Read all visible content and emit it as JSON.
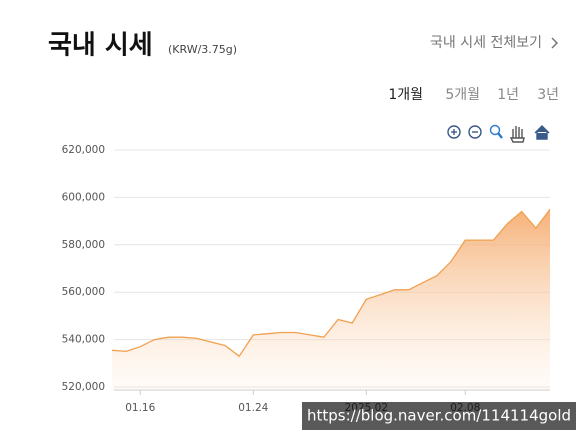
{
  "header": {
    "title": "국내 시세",
    "unit": "(KRW/3.75g)",
    "link": "국내 시세 전체보기"
  },
  "tabs": [
    "1개월",
    "5개월",
    "1년",
    "3년"
  ],
  "watermark": "https://blog.naver.com/114114gold",
  "chart_data": {
    "type": "area",
    "categories": [
      null,
      null,
      "01.16",
      null,
      null,
      null,
      null,
      null,
      null,
      null,
      "01.24",
      null,
      null,
      null,
      null,
      null,
      null,
      null,
      "2025.02",
      null,
      null,
      null,
      null,
      null,
      null,
      "02.08",
      null,
      null,
      null,
      null,
      null,
      null
    ],
    "values": [
      535500,
      535000,
      537000,
      540000,
      541000,
      541000,
      540500,
      539000,
      537500,
      533000,
      542000,
      542500,
      543000,
      543000,
      542000,
      541000,
      548500,
      547000,
      557000,
      559000,
      561000,
      561000,
      564000,
      567000,
      573000,
      582000,
      582000,
      582000,
      589000,
      594000,
      587000,
      595000
    ],
    "color": "#f0a050",
    "ylim": [
      520000,
      620000
    ],
    "yticks": [
      {
        "value": 520000,
        "label": "520,000"
      },
      {
        "value": 540000,
        "label": "540,000"
      },
      {
        "value": 560000,
        "label": "560,000"
      },
      {
        "value": 580000,
        "label": "580,000"
      },
      {
        "value": 600000,
        "label": "600,000"
      },
      {
        "value": 620000,
        "label": "620,000"
      }
    ],
    "grid": true
  }
}
